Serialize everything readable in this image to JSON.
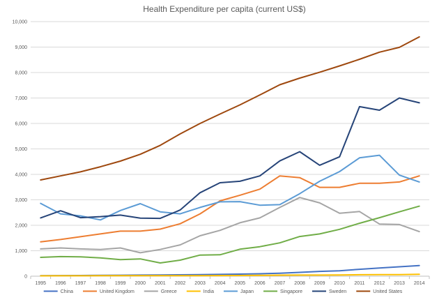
{
  "chart_data": {
    "type": "line",
    "title": "Health Expenditure per capita (current US$)",
    "xlabel": "",
    "ylabel": "",
    "ylim": [
      0,
      10000
    ],
    "y_ticks": [
      0,
      1000,
      2000,
      3000,
      4000,
      5000,
      6000,
      7000,
      8000,
      9000,
      10000
    ],
    "y_tick_labels": [
      "0",
      "1,000",
      "2,000",
      "3,000",
      "4,000",
      "5,000",
      "6,000",
      "7,000",
      "8,000",
      "9,000",
      "10,000"
    ],
    "grid": true,
    "legend_position": "bottom",
    "categories": [
      "1995",
      "1996",
      "1997",
      "1998",
      "1999",
      "2000",
      "2001",
      "2002",
      "2003",
      "2004",
      "2005",
      "2006",
      "2007",
      "2008",
      "2009",
      "2010",
      "2011",
      "2012",
      "2013",
      "2014"
    ],
    "series": [
      {
        "name": "China",
        "color": "#4472C4",
        "values": [
          20,
          24,
          28,
          32,
          38,
          43,
          49,
          55,
          63,
          71,
          81,
          95,
          115,
          150,
          190,
          215,
          270,
          320,
          370,
          420
        ]
      },
      {
        "name": "United Kingdom",
        "color": "#ED7D31",
        "values": [
          1350,
          1440,
          1550,
          1660,
          1770,
          1770,
          1850,
          2060,
          2450,
          2960,
          3180,
          3420,
          3940,
          3870,
          3490,
          3490,
          3650,
          3650,
          3700,
          3940
        ]
      },
      {
        "name": "Greece",
        "color": "#A5A5A5",
        "values": [
          1070,
          1110,
          1070,
          1050,
          1110,
          920,
          1050,
          1230,
          1590,
          1800,
          2100,
          2290,
          2700,
          3090,
          2880,
          2470,
          2540,
          2050,
          2030,
          1750
        ]
      },
      {
        "name": "India",
        "color": "#FFC000",
        "values": [
          15,
          16,
          17,
          18,
          19,
          19,
          20,
          20,
          22,
          25,
          28,
          32,
          40,
          44,
          45,
          50,
          58,
          60,
          60,
          75
        ]
      },
      {
        "name": "Japan",
        "color": "#5B9BD5",
        "values": [
          2860,
          2450,
          2370,
          2210,
          2580,
          2850,
          2530,
          2450,
          2700,
          2920,
          2930,
          2790,
          2810,
          3240,
          3730,
          4110,
          4650,
          4750,
          3970,
          3700
        ]
      },
      {
        "name": "Singapore",
        "color": "#70AD47",
        "values": [
          740,
          770,
          760,
          720,
          650,
          680,
          520,
          630,
          830,
          840,
          1060,
          1160,
          1310,
          1560,
          1660,
          1840,
          2080,
          2300,
          2530,
          2750
        ]
      },
      {
        "name": "Sweden",
        "color": "#264478",
        "values": [
          2290,
          2570,
          2300,
          2340,
          2400,
          2280,
          2270,
          2600,
          3280,
          3670,
          3730,
          3940,
          4530,
          4890,
          4360,
          4690,
          6660,
          6520,
          7000,
          6810
        ]
      },
      {
        "name": "United States",
        "color": "#9E480E",
        "values": [
          3780,
          3940,
          4100,
          4300,
          4520,
          4790,
          5140,
          5590,
          6000,
          6370,
          6730,
          7120,
          7520,
          7780,
          8010,
          8260,
          8520,
          8800,
          8990,
          9400
        ]
      }
    ]
  }
}
